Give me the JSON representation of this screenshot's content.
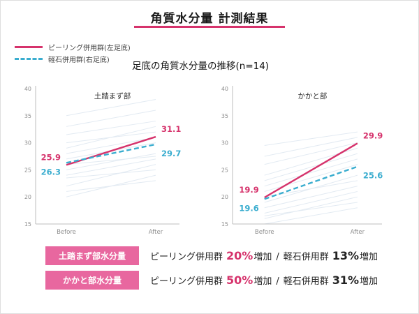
{
  "header": {
    "title": "角質水分量 計測結果"
  },
  "subtitle": "足底の角質水分量の推移(n=14)",
  "legend": {
    "items": [
      {
        "label": "ピーリング併用群(左足底)",
        "color": "#d6336c",
        "style": "solid"
      },
      {
        "label": "軽石併用群(右足底)",
        "color": "#3aadcf",
        "style": "dashed"
      }
    ]
  },
  "colors": {
    "accent_pink": "#d6336c",
    "badge_pink": "#e8679f",
    "dashed_blue": "#3aadcf",
    "individual_gray": "#e2eaf2"
  },
  "chart_data": [
    {
      "type": "line",
      "title": "土踏まず部",
      "x": [
        "Before",
        "After"
      ],
      "xlabel": "",
      "ylabel": "",
      "ylim": [
        15,
        40
      ],
      "yticks": [
        15,
        20,
        25,
        30,
        35,
        40
      ],
      "grid": false,
      "legend_position": "top-left",
      "individual_color": "#e2eaf2",
      "series": [
        {
          "name": "ピーリング併用群(左足底)",
          "color": "#d6336c",
          "dash": false,
          "values": [
            25.9,
            31.1
          ]
        },
        {
          "name": "軽石併用群(右足底)",
          "color": "#3aadcf",
          "dash": true,
          "values": [
            26.3,
            29.7
          ]
        }
      ],
      "individual_lines": [
        [
          20,
          24
        ],
        [
          21,
          23
        ],
        [
          22,
          26
        ],
        [
          23.5,
          25
        ],
        [
          24,
          27
        ],
        [
          25,
          28
        ],
        [
          26,
          27.5
        ],
        [
          27,
          30
        ],
        [
          28,
          31
        ],
        [
          29,
          33
        ],
        [
          30,
          32
        ],
        [
          31.5,
          34
        ],
        [
          33,
          36
        ],
        [
          35,
          38
        ]
      ]
    },
    {
      "type": "line",
      "title": "かかと部",
      "x": [
        "Before",
        "After"
      ],
      "xlabel": "",
      "ylabel": "",
      "ylim": [
        15,
        40
      ],
      "yticks": [
        15,
        20,
        25,
        30,
        35,
        40
      ],
      "grid": false,
      "legend_position": "top-left",
      "individual_color": "#e2eaf2",
      "series": [
        {
          "name": "ピーリング併用群(左足底)",
          "color": "#d6336c",
          "dash": false,
          "values": [
            19.9,
            29.9
          ]
        },
        {
          "name": "軽石併用群(右足底)",
          "color": "#3aadcf",
          "dash": true,
          "values": [
            19.6,
            25.6
          ]
        }
      ],
      "individual_lines": [
        [
          15,
          18
        ],
        [
          16,
          20
        ],
        [
          16.5,
          19
        ],
        [
          17,
          21
        ],
        [
          18,
          22
        ],
        [
          19,
          24
        ],
        [
          20,
          23
        ],
        [
          21,
          26
        ],
        [
          22,
          27
        ],
        [
          23,
          28
        ],
        [
          24,
          29
        ],
        [
          26,
          30
        ],
        [
          27.5,
          31
        ],
        [
          29.5,
          32
        ]
      ]
    }
  ],
  "summary": {
    "rows": [
      {
        "badge": "土踏まず部水分量",
        "group1": "ピーリング併用群",
        "pct1": "20%",
        "suffix1": "増加",
        "sep": "/",
        "group2": "軽石併用群",
        "pct2": "13%",
        "suffix2": "増加"
      },
      {
        "badge": "かかと部水分量",
        "group1": "ピーリング併用群",
        "pct1": "50%",
        "suffix1": "増加",
        "sep": "/",
        "group2": "軽石併用群",
        "pct2": "31%",
        "suffix2": "増加"
      }
    ]
  }
}
